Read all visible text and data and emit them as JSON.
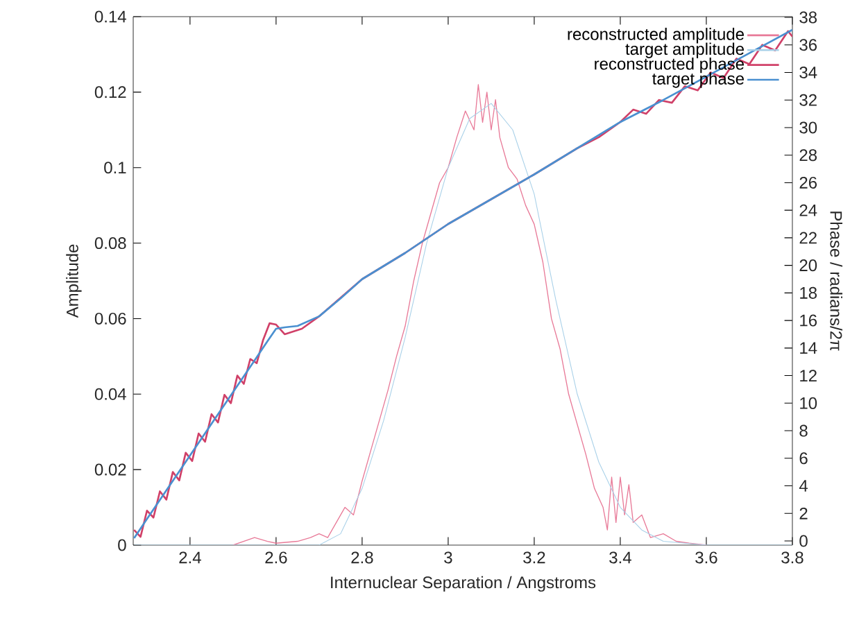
{
  "chart_data": {
    "type": "line",
    "xlabel": "Internuclear Separation / Angstroms",
    "ylabel": "Amplitude",
    "y2label": "Phase / radians/2π",
    "xlim": [
      2.268,
      3.8
    ],
    "xticks": [
      2.4,
      2.6,
      2.8,
      3,
      3.2,
      3.4,
      3.6,
      3.8
    ],
    "ylim": [
      0,
      0.14
    ],
    "yticks": [
      0,
      0.02,
      0.04,
      0.06,
      0.08,
      0.1,
      0.12,
      0.14
    ],
    "y2lim": [
      -0.3,
      38.05
    ],
    "y2ticks": [
      0,
      2,
      4,
      6,
      8,
      10,
      12,
      14,
      16,
      18,
      20,
      22,
      24,
      26,
      28,
      30,
      32,
      34,
      36,
      38
    ],
    "legend": "top right",
    "marker": "none",
    "line_style": "solid",
    "grid": false,
    "series": [
      {
        "name": "reconstructed amplitude",
        "color": "#e87a98",
        "axis": "y",
        "x": [
          2.5,
          2.55,
          2.58,
          2.6,
          2.65,
          2.68,
          2.7,
          2.72,
          2.74,
          2.76,
          2.78,
          2.8,
          2.82,
          2.84,
          2.86,
          2.88,
          2.9,
          2.92,
          2.94,
          2.96,
          2.98,
          3.0,
          3.02,
          3.04,
          3.06,
          3.07,
          3.08,
          3.09,
          3.1,
          3.11,
          3.12,
          3.14,
          3.16,
          3.18,
          3.2,
          3.22,
          3.24,
          3.26,
          3.28,
          3.3,
          3.32,
          3.34,
          3.36,
          3.37,
          3.38,
          3.39,
          3.4,
          3.41,
          3.42,
          3.43,
          3.45,
          3.47,
          3.5,
          3.53,
          3.56,
          3.6
        ],
        "values": [
          0,
          0.002,
          0.001,
          0.0005,
          0.001,
          0.002,
          0.003,
          0.002,
          0.006,
          0.01,
          0.008,
          0.017,
          0.025,
          0.033,
          0.041,
          0.05,
          0.058,
          0.07,
          0.08,
          0.088,
          0.096,
          0.1,
          0.108,
          0.115,
          0.11,
          0.122,
          0.112,
          0.12,
          0.11,
          0.118,
          0.108,
          0.1,
          0.097,
          0.09,
          0.085,
          0.075,
          0.06,
          0.052,
          0.04,
          0.032,
          0.024,
          0.015,
          0.01,
          0.004,
          0.018,
          0.006,
          0.018,
          0.008,
          0.016,
          0.006,
          0.008,
          0.002,
          0.003,
          0.001,
          0.0005,
          0
        ]
      },
      {
        "name": "target amplitude",
        "color": "#a8d0e8",
        "axis": "y",
        "x": [
          2.27,
          2.7,
          2.75,
          2.8,
          2.85,
          2.9,
          2.95,
          3.0,
          3.05,
          3.1,
          3.15,
          3.2,
          3.25,
          3.3,
          3.35,
          3.4,
          3.45,
          3.5,
          3.6,
          3.8
        ],
        "values": [
          0,
          0,
          0.003,
          0.015,
          0.033,
          0.055,
          0.08,
          0.1,
          0.113,
          0.117,
          0.11,
          0.093,
          0.065,
          0.04,
          0.022,
          0.01,
          0.004,
          0.001,
          0,
          0
        ]
      },
      {
        "name": "reconstructed phase",
        "color": "#d04068",
        "axis": "y2",
        "x": [
          2.27,
          2.285,
          2.3,
          2.315,
          2.33,
          2.345,
          2.36,
          2.375,
          2.39,
          2.405,
          2.42,
          2.435,
          2.45,
          2.465,
          2.48,
          2.495,
          2.51,
          2.525,
          2.54,
          2.555,
          2.57,
          2.585,
          2.6,
          2.62,
          2.64,
          2.66,
          2.7,
          2.8,
          2.9,
          3.0,
          3.1,
          3.2,
          3.3,
          3.35,
          3.4,
          3.43,
          3.46,
          3.49,
          3.52,
          3.55,
          3.58,
          3.61,
          3.64,
          3.67,
          3.7,
          3.73,
          3.76,
          3.79,
          3.8
        ],
        "values": [
          0.8,
          0.3,
          2.2,
          1.7,
          3.6,
          3.0,
          5.0,
          4.4,
          6.4,
          5.8,
          7.8,
          7.2,
          9.2,
          8.6,
          10.6,
          10.0,
          12.0,
          11.4,
          13.2,
          12.9,
          14.6,
          15.8,
          15.7,
          15.0,
          15.2,
          15.4,
          16.3,
          19.0,
          20.9,
          23.0,
          24.8,
          26.6,
          28.5,
          29.3,
          30.4,
          31.3,
          31.0,
          32.0,
          31.8,
          33.0,
          32.7,
          34.0,
          33.6,
          35.0,
          34.6,
          36.0,
          35.6,
          37.0,
          36.6
        ]
      },
      {
        "name": "target phase",
        "color": "#4a90d0",
        "axis": "y2",
        "x": [
          2.27,
          2.3,
          2.35,
          2.4,
          2.45,
          2.5,
          2.55,
          2.58,
          2.6,
          2.62,
          2.65,
          2.7,
          2.75,
          2.8,
          2.9,
          3.0,
          3.1,
          3.2,
          3.3,
          3.4,
          3.5,
          3.6,
          3.7,
          3.8
        ],
        "values": [
          0.2,
          1.6,
          3.9,
          6.2,
          8.5,
          10.8,
          13.1,
          14.5,
          15.4,
          15.5,
          15.6,
          16.3,
          17.6,
          19.0,
          20.9,
          23.0,
          24.8,
          26.6,
          28.5,
          30.4,
          32.0,
          33.7,
          35.4,
          37.1
        ]
      }
    ]
  }
}
